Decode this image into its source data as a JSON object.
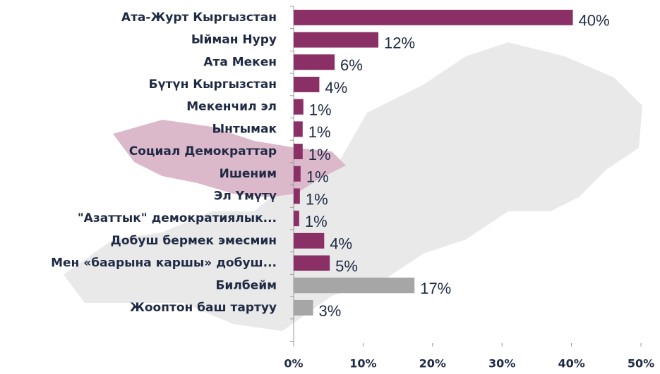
{
  "chart_data": {
    "type": "bar",
    "orientation": "horizontal",
    "categories": [
      "Ата-Журт Кыргызстан",
      "Ыйман Нуру",
      "Ата Мекен",
      "Бүтүн Кыргызстан",
      "Мекенчил эл",
      "Ынтымак",
      "Социал Демократтар",
      "Ишеним",
      "Эл Үмүтү",
      "\"Азаттык\" демократиялык...",
      "Добуш бермек эмесмин",
      "Мен «баарына каршы» добуш...",
      "Билбейм",
      "Жооптон баш тартуу"
    ],
    "values": [
      40.2,
      12.2,
      5.9,
      3.7,
      1.4,
      1.3,
      1.3,
      1.0,
      0.9,
      0.8,
      4.4,
      5.2,
      17.4,
      2.8
    ],
    "value_labels": [
      "40%",
      "12%",
      "6%",
      "4%",
      "1%",
      "1%",
      "1%",
      "1%",
      "1%",
      "1%",
      "4%",
      "5%",
      "17%",
      "3%"
    ],
    "colors": [
      "#8b3066",
      "#8b3066",
      "#8b3066",
      "#8b3066",
      "#8b3066",
      "#8b3066",
      "#8b3066",
      "#8b3066",
      "#8b3066",
      "#8b3066",
      "#8b3066",
      "#8b3066",
      "#a6a6a6",
      "#a6a6a6"
    ],
    "xlim": [
      0,
      50
    ],
    "xticks": [
      {
        "value": 0,
        "label": "0%"
      },
      {
        "value": 10,
        "label": "10%"
      },
      {
        "value": 20,
        "label": "20%"
      },
      {
        "value": 30,
        "label": "30%"
      },
      {
        "value": 40,
        "label": "40%"
      },
      {
        "value": 50,
        "label": "50%"
      }
    ],
    "grid": false
  }
}
